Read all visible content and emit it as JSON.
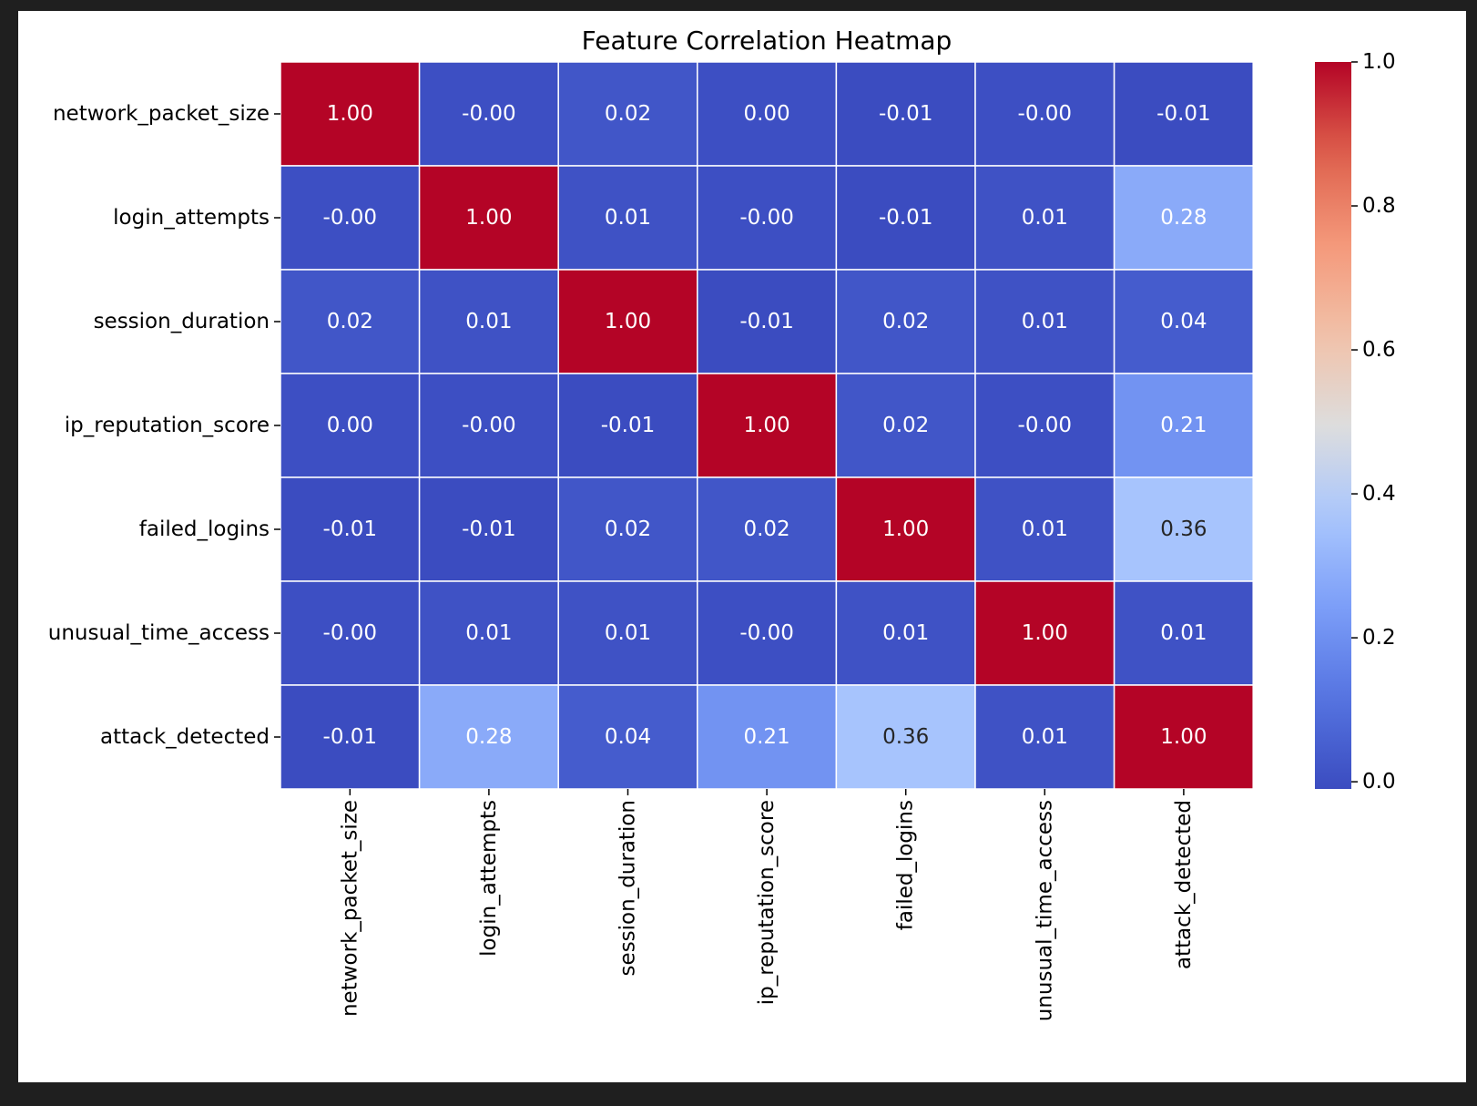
{
  "chart_data": {
    "type": "heatmap",
    "title": "Feature Correlation Heatmap",
    "xlabel": "",
    "ylabel": "",
    "colormap": "coolwarm",
    "value_format": "2 decimals",
    "rows": [
      "network_packet_size",
      "login_attempts",
      "session_duration",
      "ip_reputation_score",
      "failed_logins",
      "unusual_time_access",
      "attack_detected"
    ],
    "columns": [
      "network_packet_size",
      "login_attempts",
      "session_duration",
      "ip_reputation_score",
      "failed_logins",
      "unusual_time_access",
      "attack_detected"
    ],
    "values": [
      [
        1.0,
        -0.0,
        0.02,
        0.0,
        -0.01,
        -0.0,
        -0.01
      ],
      [
        -0.0,
        1.0,
        0.01,
        -0.0,
        -0.01,
        0.01,
        0.28
      ],
      [
        0.02,
        0.01,
        1.0,
        -0.01,
        0.02,
        0.01,
        0.04
      ],
      [
        0.0,
        -0.0,
        -0.01,
        1.0,
        0.02,
        -0.0,
        0.21
      ],
      [
        -0.01,
        -0.01,
        0.02,
        0.02,
        1.0,
        0.01,
        0.36
      ],
      [
        -0.0,
        0.01,
        0.01,
        -0.0,
        0.01,
        1.0,
        0.01
      ],
      [
        -0.01,
        0.28,
        0.04,
        0.21,
        0.36,
        0.01,
        1.0
      ]
    ],
    "labels": [
      [
        "1.00",
        "-0.00",
        "0.02",
        "0.00",
        "-0.01",
        "-0.00",
        "-0.01"
      ],
      [
        "-0.00",
        "1.00",
        "0.01",
        "-0.00",
        "-0.01",
        "0.01",
        "0.28"
      ],
      [
        "0.02",
        "0.01",
        "1.00",
        "-0.01",
        "0.02",
        "0.01",
        "0.04"
      ],
      [
        "0.00",
        "-0.00",
        "-0.01",
        "1.00",
        "0.02",
        "-0.00",
        "0.21"
      ],
      [
        "-0.01",
        "-0.01",
        "0.02",
        "0.02",
        "1.00",
        "0.01",
        "0.36"
      ],
      [
        "-0.00",
        "0.01",
        "0.01",
        "-0.00",
        "0.01",
        "1.00",
        "0.01"
      ],
      [
        "-0.01",
        "0.28",
        "0.04",
        "0.21",
        "0.36",
        "0.01",
        "1.00"
      ]
    ],
    "vmin": -0.01,
    "vmax": 1.0,
    "colorbar": {
      "ticks": [
        0.0,
        0.2,
        0.4,
        0.6,
        0.8,
        1.0
      ],
      "tick_labels": [
        "0.0",
        "0.2",
        "0.4",
        "0.6",
        "0.8",
        "1.0"
      ]
    },
    "grid": true,
    "colorbar_placement": "right"
  }
}
